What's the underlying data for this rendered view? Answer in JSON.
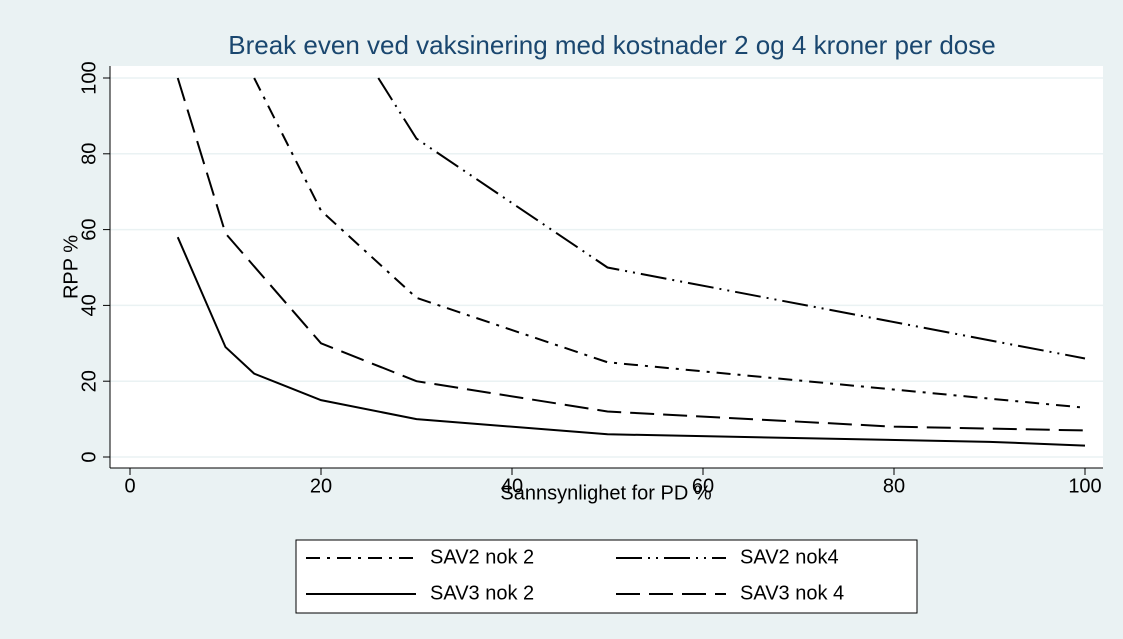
{
  "chart_data": {
    "type": "line",
    "title": "Break even ved vaksinering med kostnader 2 og 4 kroner per dose",
    "xlabel": "Sannsynlighet for PD %",
    "ylabel": "RPP %",
    "xlim": [
      0,
      100
    ],
    "xticks": [
      0,
      20,
      40,
      60,
      80,
      100
    ],
    "ylim": [
      0,
      100
    ],
    "yticks": [
      0,
      20,
      40,
      60,
      80,
      100
    ],
    "grid": true,
    "series": [
      {
        "name": "SAV2 nok 2",
        "color": "#000000",
        "dash": "dash_dot",
        "x": [
          13,
          20,
          30,
          50,
          100
        ],
        "values": [
          100,
          65,
          42,
          25,
          13
        ]
      },
      {
        "name": "SAV2 nok4",
        "color": "#000000",
        "dash": "longdash_dot_dot",
        "x": [
          26,
          30,
          50,
          100
        ],
        "values": [
          100,
          84,
          50,
          26
        ]
      },
      {
        "name": "SAV3 nok 2",
        "color": "#000000",
        "dash": "solid",
        "x": [
          5,
          10,
          13,
          20,
          30,
          50,
          90,
          100
        ],
        "values": [
          58,
          29,
          22,
          15,
          10,
          6,
          4,
          3
        ]
      },
      {
        "name": "SAV3 nok 4",
        "color": "#000000",
        "dash": "longdash",
        "x": [
          5,
          10,
          20,
          30,
          50,
          80,
          100
        ],
        "values": [
          100,
          59,
          30,
          20,
          12,
          8,
          7
        ]
      }
    ]
  }
}
